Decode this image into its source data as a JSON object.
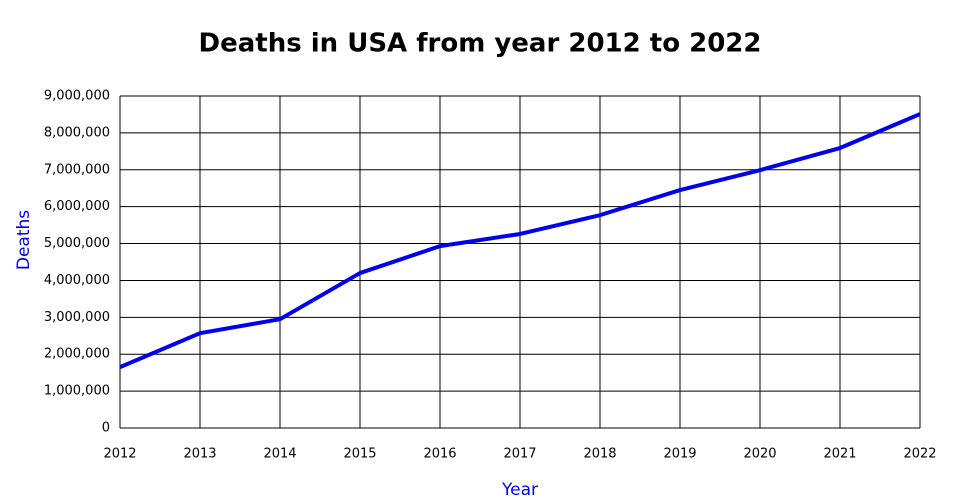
{
  "chart_data": {
    "type": "line",
    "title": "Deaths in USA from year 2012 to 2022",
    "x_label": "Year",
    "y_label": "Deaths",
    "x": [
      2012,
      2013,
      2014,
      2015,
      2016,
      2017,
      2018,
      2019,
      2020,
      2021,
      2022
    ],
    "series": [
      {
        "name": "Deaths",
        "color": "#0000ee",
        "values": [
          1650000,
          2570000,
          2950000,
          4200000,
          4930000,
          5260000,
          5770000,
          6450000,
          6990000,
          7590000,
          8510000
        ]
      }
    ],
    "xlim": [
      2012,
      2022
    ],
    "xticks": [
      2012,
      2013,
      2014,
      2015,
      2016,
      2017,
      2018,
      2019,
      2020,
      2021,
      2022
    ],
    "ylim": [
      0,
      9000000
    ],
    "yticks": [
      0,
      {
        "value": 1000000,
        "label": "1,000,000"
      },
      {
        "value": 2000000,
        "label": "2,000,000"
      },
      {
        "value": 3000000,
        "label": "3,000,000"
      },
      {
        "value": 4000000,
        "label": "4,000,000"
      },
      {
        "value": 5000000,
        "label": "5,000,000"
      },
      {
        "value": 6000000,
        "label": "6,000,000"
      },
      {
        "value": 7000000,
        "label": "7,000,000"
      },
      {
        "value": 8000000,
        "label": "8,000,000"
      },
      {
        "value": 9000000,
        "label": "9,000,000"
      }
    ],
    "grid": true,
    "axis_label_color": "#0000ee"
  }
}
